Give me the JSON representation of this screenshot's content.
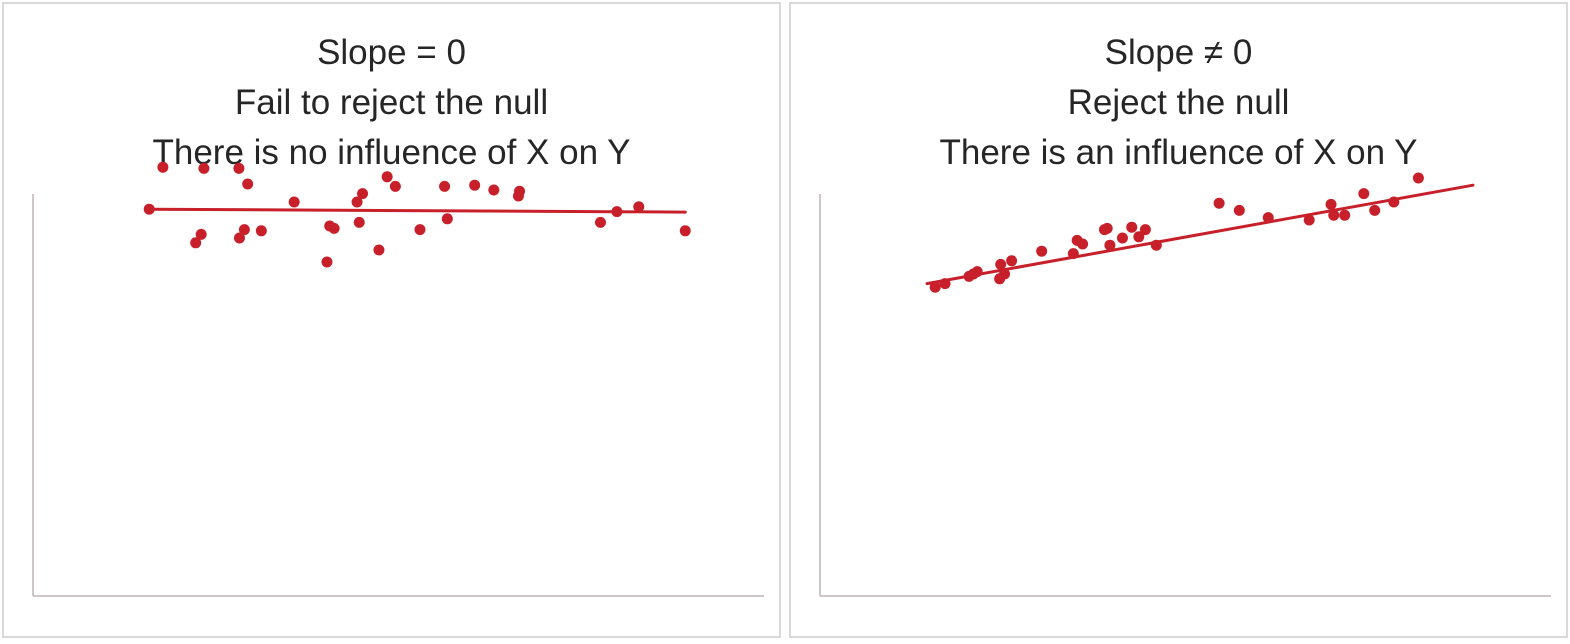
{
  "chart_data": [
    {
      "type": "scatter",
      "title": [
        "Slope = 0",
        "Fail to reject the null",
        "There is no influence of X on Y"
      ],
      "xlabel": "",
      "ylabel": "",
      "xlim": [
        0,
        100
      ],
      "ylim": [
        0,
        100
      ],
      "grid": false,
      "legend": "none",
      "colors": {
        "points": "#c8202b",
        "line": "#c8202b",
        "axis": "#bfb3b8"
      },
      "series": [
        {
          "x": [
            1.5,
            4.0,
            10.0,
            11.0,
            11.5,
            17.9,
            18.0,
            18.9,
            19.5,
            22.0,
            28.0,
            34.0,
            34.5,
            35.3,
            39.5,
            39.9,
            40.5,
            43.5,
            45.0,
            46.5,
            51.0,
            55.5,
            56.0,
            61.0,
            64.5,
            69.0,
            69.2,
            84.0,
            87.0,
            91.0,
            99.5
          ],
          "y": [
            77.0,
            94.5,
            63.0,
            66.5,
            94.0,
            94.0,
            65.0,
            68.5,
            87.5,
            68.0,
            80.0,
            55.0,
            70.0,
            69.0,
            80.0,
            71.5,
            83.5,
            60.0,
            90.5,
            86.5,
            68.5,
            86.5,
            73.0,
            87.0,
            85.0,
            82.5,
            84.5,
            71.5,
            76.0,
            78.0,
            68.0
          ]
        }
      ],
      "trendline": {
        "x": [
          1.5,
          99.5
        ],
        "y": [
          77.0,
          75.8
        ]
      }
    },
    {
      "type": "scatter",
      "title": [
        "Slope ≠ 0",
        "Reject the null",
        "There is an influence of X on Y"
      ],
      "xlabel": "",
      "ylabel": "",
      "xlim": [
        0,
        100
      ],
      "ylim": [
        0,
        100
      ],
      "grid": false,
      "legend": "none",
      "colors": {
        "points": "#c8202b",
        "line": "#c8202b",
        "axis": "#bfb3b8"
      },
      "series": [
        {
          "x": [
            1.5,
            3.3,
            7.7,
            8.5,
            9.2,
            13.3,
            13.5,
            14.2,
            15.5,
            21.0,
            26.8,
            27.5,
            28.5,
            32.5,
            33.5,
            33.0,
            35.8,
            37.5,
            38.8,
            40.0,
            42.0,
            53.5,
            57.2,
            62.5,
            74.0,
            74.5,
            76.5,
            70.0,
            80.0,
            82.0,
            85.5,
            90.0
          ],
          "y": [
            44.5,
            46.0,
            49.0,
            50.0,
            51.0,
            48.0,
            54.0,
            50.0,
            55.5,
            59.5,
            58.5,
            64.0,
            62.5,
            68.5,
            62.0,
            69.0,
            65.0,
            69.5,
            65.5,
            68.5,
            62.0,
            79.5,
            76.5,
            73.5,
            79.0,
            74.5,
            74.5,
            72.5,
            83.5,
            76.5,
            80.0,
            90.0
          ]
        }
      ],
      "trendline": {
        "x": [
          0.0,
          100.0
        ],
        "y": [
          46.0,
          87.0
        ]
      }
    }
  ]
}
